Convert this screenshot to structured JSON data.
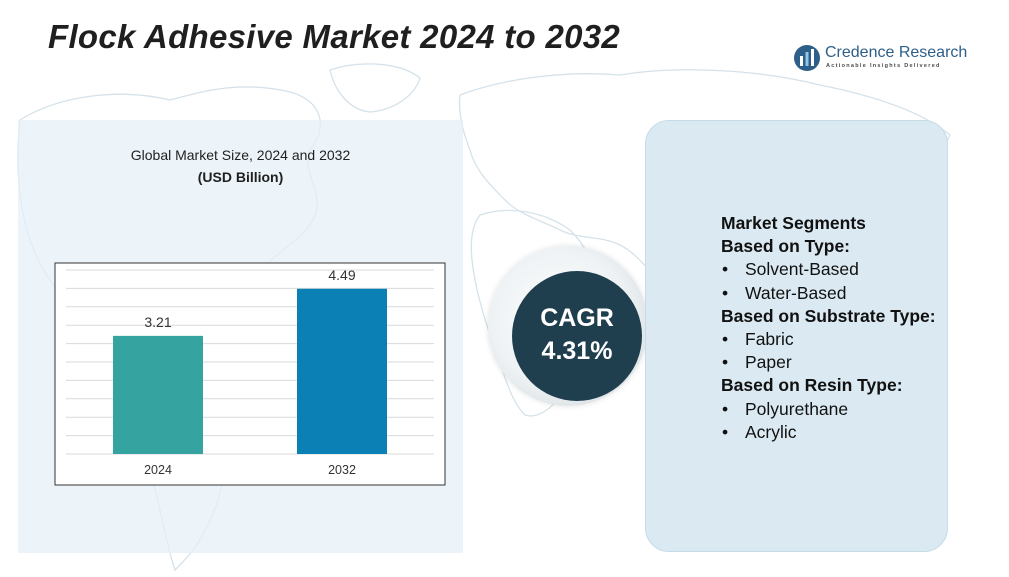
{
  "title": "Flock Adhesive Market 2024 to 2032",
  "logo": {
    "name": "Credence Research",
    "tagline": "Actionable Insights Delivered",
    "icon": "bar-chart-logo-icon"
  },
  "colors": {
    "bar_2024": "#35a39f",
    "bar_2032": "#0a80b5",
    "cagr_circle": "#1f3f4f",
    "logo_blue": "#2d5f88"
  },
  "chart_data": {
    "type": "bar",
    "title": "Global Market Size, 2024 and 2032",
    "subtitle": "(USD Billion)",
    "categories": [
      "2024",
      "2032"
    ],
    "values": [
      3.21,
      4.49
    ],
    "value_labels": [
      "3.21",
      "4.49"
    ],
    "ylim": [
      0,
      5
    ],
    "grid": true,
    "xlabel": "",
    "ylabel": ""
  },
  "cagr": {
    "label": "CAGR",
    "value": "4.31%"
  },
  "segments": {
    "heading": "Market Segments",
    "groups": [
      {
        "title": "Based on Type:",
        "items": [
          "Solvent-Based",
          "Water-Based"
        ]
      },
      {
        "title": "Based on Substrate Type:",
        "items": [
          "Fabric",
          "Paper"
        ]
      },
      {
        "title": "Based on Resin Type:",
        "items": [
          "Polyurethane",
          "Acrylic"
        ]
      }
    ]
  }
}
